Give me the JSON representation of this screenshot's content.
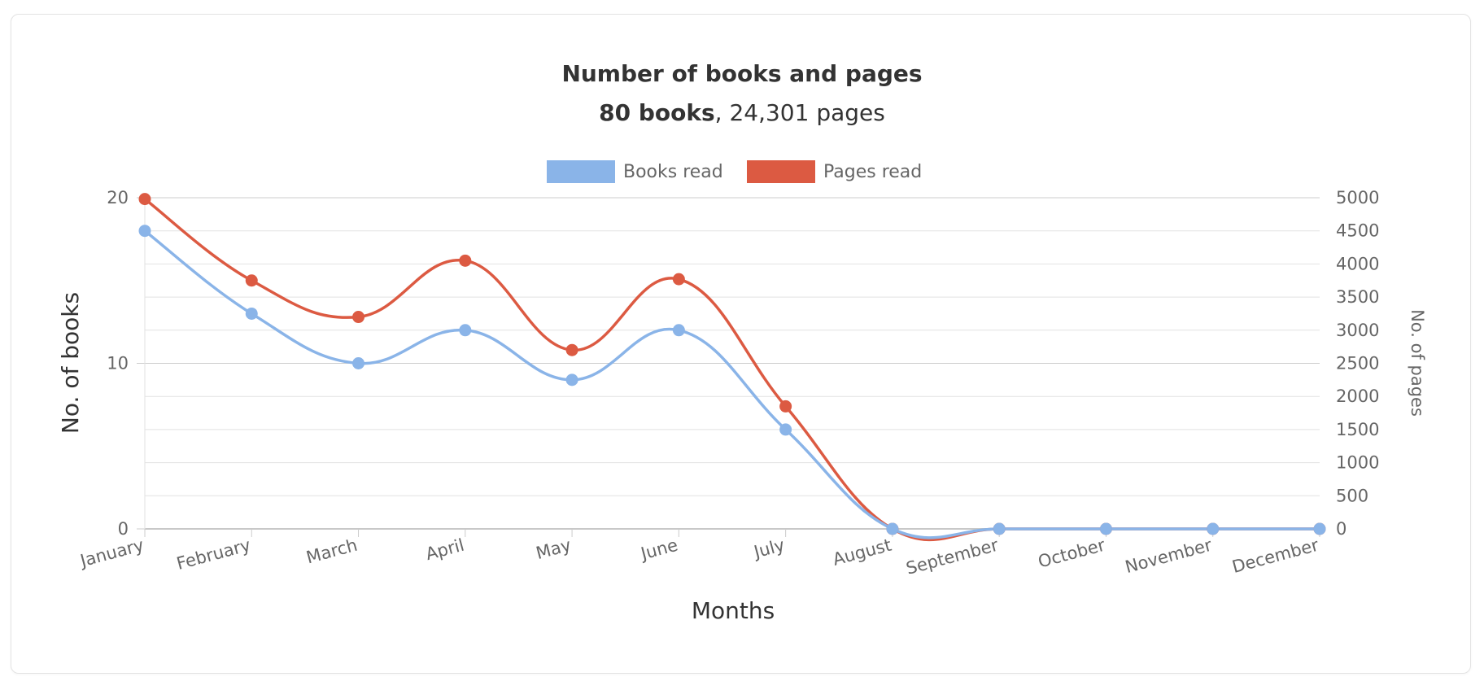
{
  "chart_data": {
    "type": "line",
    "title": "Number of books and pages",
    "subtitle": {
      "books_bold": "80 books",
      "pages_text": ", 24,301 pages"
    },
    "categories": [
      "January",
      "February",
      "March",
      "April",
      "May",
      "June",
      "July",
      "August",
      "September",
      "October",
      "November",
      "December"
    ],
    "series": [
      {
        "name": "Books read",
        "axis": "left",
        "color": "#8ab4e8",
        "values": [
          18,
          13,
          10,
          12,
          9,
          12,
          6,
          0,
          0,
          0,
          0,
          0
        ]
      },
      {
        "name": "Pages read",
        "axis": "right",
        "color": "#dc5a42",
        "values": [
          4980,
          3750,
          3200,
          4050,
          2700,
          3770,
          1850,
          0,
          0,
          0,
          0,
          0
        ]
      }
    ],
    "xlabel": "Months",
    "ylabel_left": "No. of books",
    "ylabel_right": "No. of pages",
    "ylim_left": [
      0,
      20
    ],
    "yticks_left": [
      "0",
      "10",
      "20"
    ],
    "ylim_right": [
      0,
      5000
    ],
    "yticks_right": [
      "0",
      "500",
      "1000",
      "1500",
      "2000",
      "2500",
      "3000",
      "3500",
      "4000",
      "4500",
      "5000"
    ],
    "smooth": true,
    "grid": true,
    "legend_position": "top-center"
  }
}
